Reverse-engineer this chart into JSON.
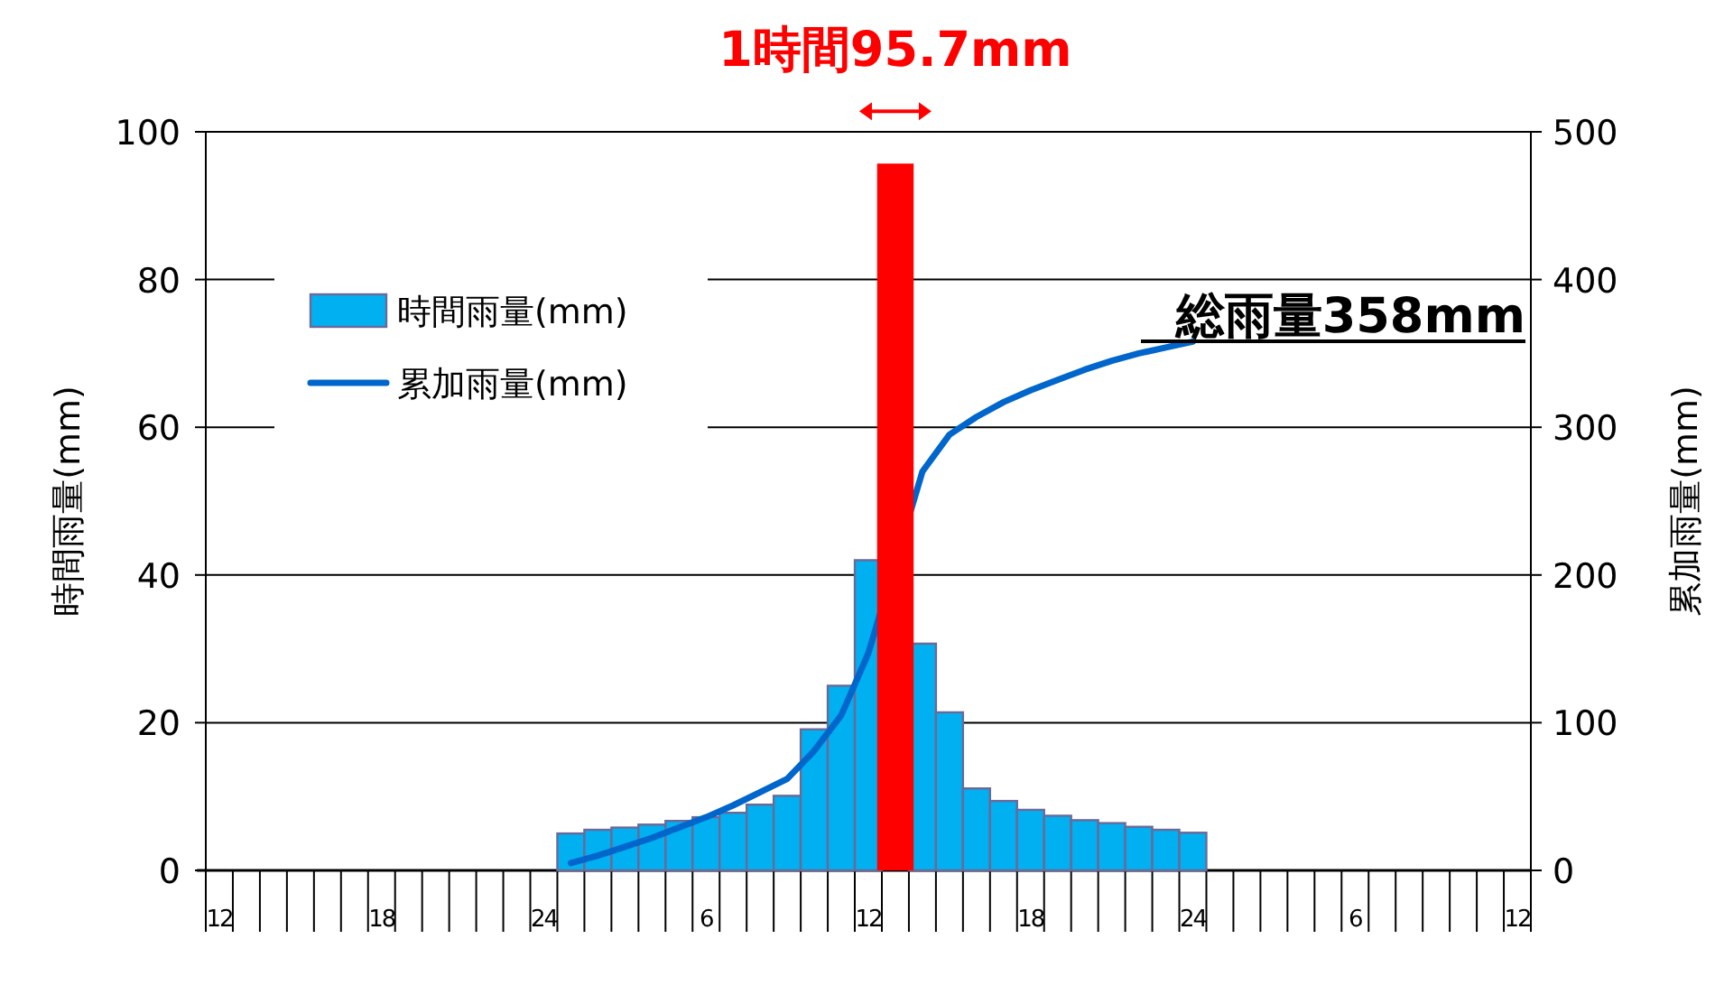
{
  "chart_data": {
    "type": "bar",
    "ylabel": "時間雨量(mm)",
    "y2label": "累加雨量(mm)",
    "categories": [
      "12",
      null,
      null,
      null,
      null,
      null,
      "18",
      null,
      null,
      null,
      null,
      null,
      "24",
      null,
      null,
      null,
      null,
      null,
      "6",
      null,
      null,
      null,
      null,
      null,
      "12",
      null,
      null,
      null,
      null,
      null,
      "18",
      null,
      null,
      null,
      null,
      null,
      "24",
      null,
      null,
      null,
      null,
      null,
      "6",
      null,
      null,
      null,
      null,
      null,
      "12"
    ],
    "series": [
      {
        "name": "時間雨量(mm)",
        "color": "#00b0f0",
        "colors": [
          null,
          null,
          null,
          null,
          null,
          null,
          null,
          null,
          null,
          null,
          null,
          null,
          null,
          "#00b0f0",
          "#00b0f0",
          "#00b0f0",
          "#00b0f0",
          "#00b0f0",
          "#00b0f0",
          "#00b0f0",
          "#00b0f0",
          "#00b0f0",
          "#00b0f0",
          "#00b0f0",
          "#00b0f0",
          "#ff0000",
          "#00b0f0",
          "#00b0f0",
          "#00b0f0",
          "#00b0f0",
          "#00b0f0",
          "#00b0f0",
          "#00b0f0",
          "#00b0f0",
          "#00b0f0",
          "#00b0f0",
          "#00b0f0",
          null,
          null,
          null,
          null,
          null,
          null,
          null,
          null,
          null,
          null,
          null,
          null
        ],
        "values": [
          null,
          null,
          null,
          null,
          null,
          null,
          null,
          null,
          null,
          null,
          null,
          null,
          null,
          5.0,
          5.5,
          5.8,
          6.2,
          6.7,
          7.2,
          7.8,
          8.9,
          10.1,
          19.1,
          25.0,
          42.0,
          95.7,
          30.7,
          21.4,
          11.1,
          9.4,
          8.2,
          7.4,
          6.8,
          6.4,
          5.9,
          5.5,
          5.1,
          null,
          null,
          null,
          null,
          null,
          null,
          null,
          null,
          null,
          null,
          null,
          null
        ]
      },
      {
        "name": "累加雨量(mm)",
        "type": "line",
        "axis": "y2",
        "color": "#0066cc",
        "values": [
          null,
          null,
          null,
          null,
          null,
          null,
          null,
          null,
          null,
          null,
          null,
          null,
          null,
          5,
          10,
          16,
          22,
          29,
          36,
          44,
          53,
          62,
          81,
          105,
          147,
          null,
          270,
          295,
          307,
          317,
          325,
          332,
          339,
          345,
          350,
          354,
          358,
          null,
          null,
          null,
          null,
          null,
          null,
          null,
          null,
          null,
          null,
          null,
          null
        ]
      }
    ],
    "ylim": [
      0,
      100
    ],
    "yticks": [
      0,
      20,
      40,
      60,
      80,
      100
    ],
    "y2lim": [
      0,
      500
    ],
    "y2ticks": [
      0,
      100,
      200,
      300,
      400,
      500
    ],
    "grid": "y",
    "legend": "top left",
    "marker": "none",
    "line_style": "solid",
    "annotations": [
      {
        "text": "1時間95.7mm",
        "y": 95.7
      },
      "総雨量358mm"
    ]
  }
}
